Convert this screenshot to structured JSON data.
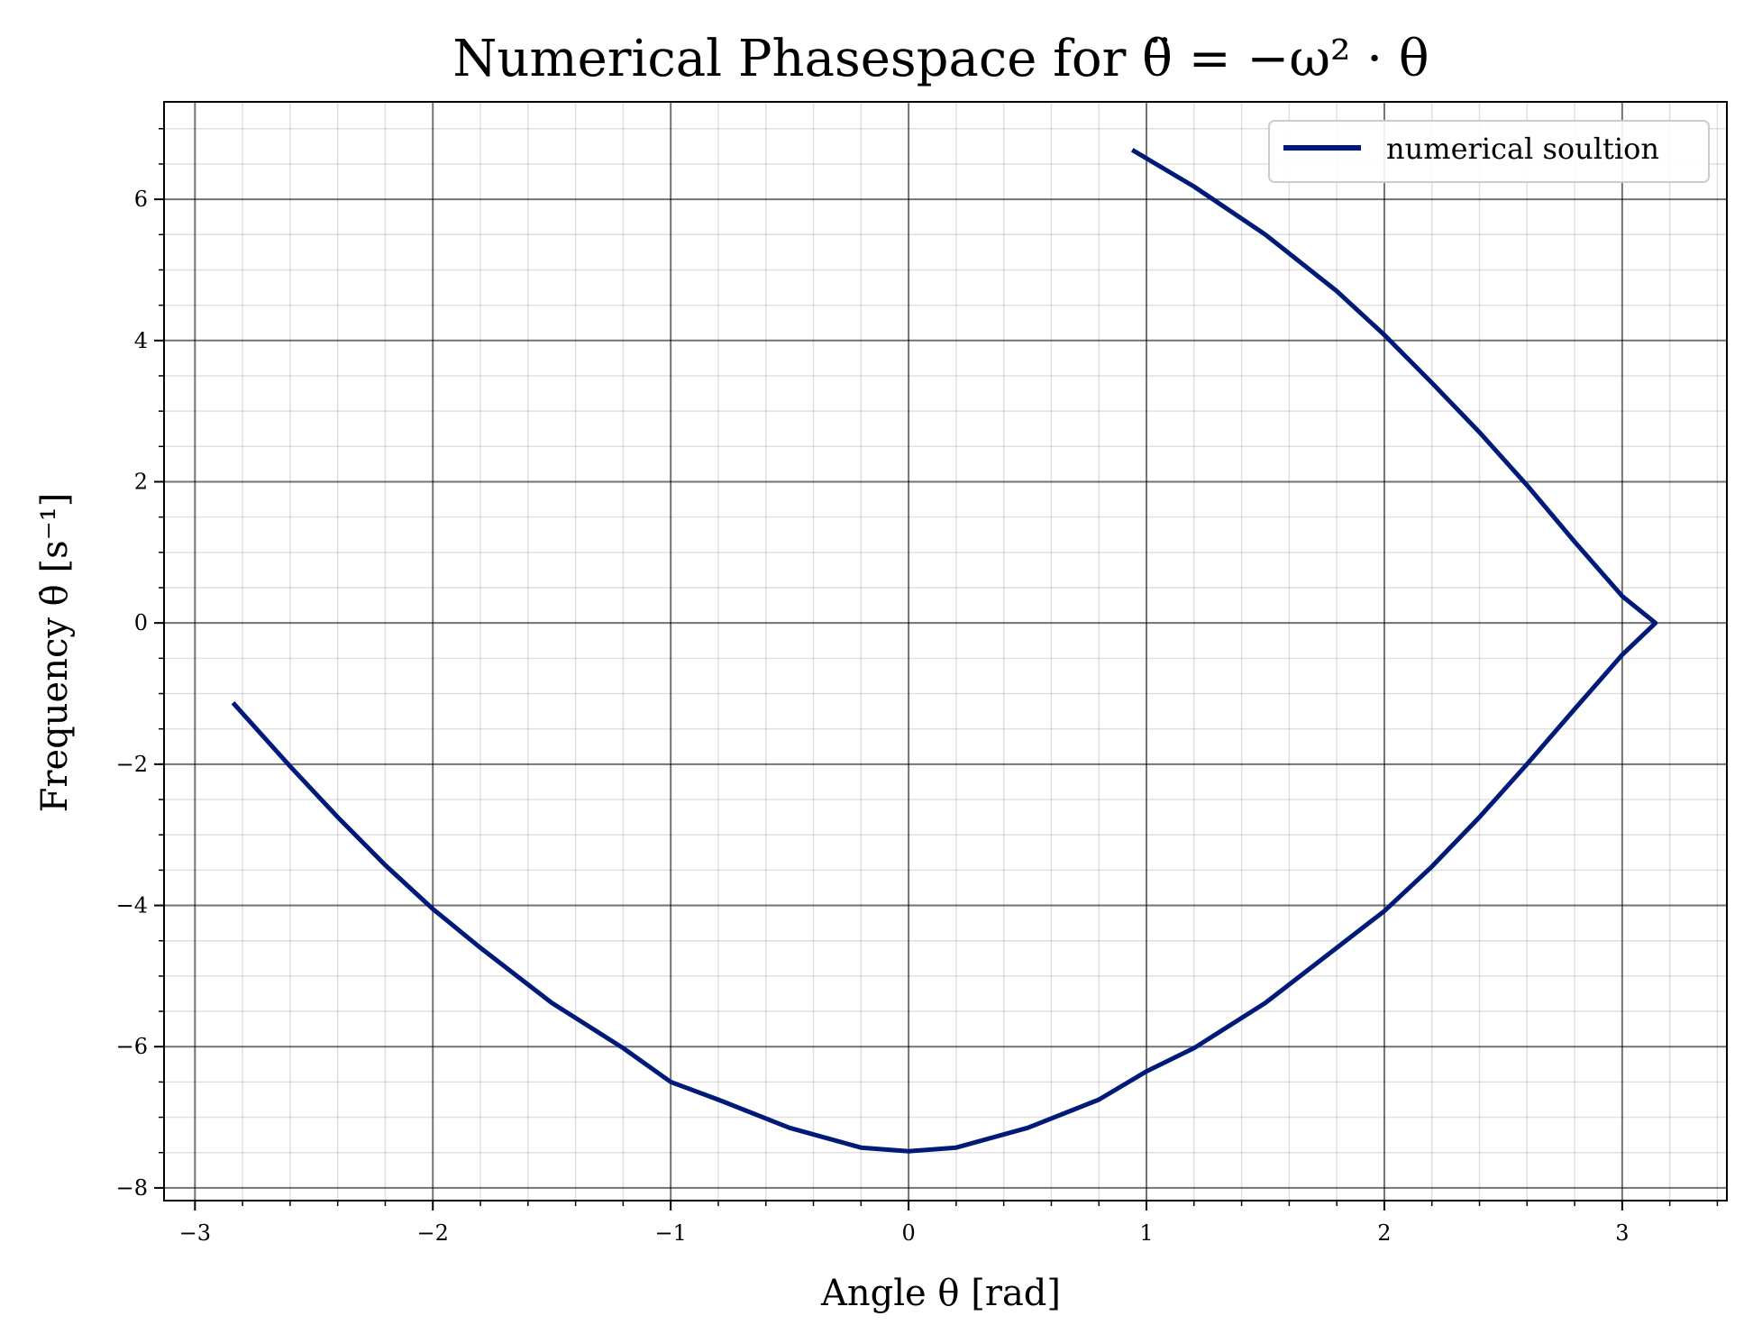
{
  "chart_data": {
    "type": "line",
    "title": "Numerical Phasespace for θ̈ = −ω² · θ",
    "xlabel": "Angle θ [rad]",
    "ylabel": "Frequency θ̇ [s⁻¹]",
    "xlim": [
      -3.13,
      3.44
    ],
    "ylim": [
      -8.18,
      7.38
    ],
    "x_ticks": [
      -3,
      -2,
      -1,
      0,
      1,
      2,
      3
    ],
    "x_tick_labels": [
      "−3",
      "−2",
      "−1",
      "0",
      "1",
      "2",
      "3"
    ],
    "y_ticks": [
      -8,
      -6,
      -4,
      -2,
      0,
      2,
      4,
      6
    ],
    "y_tick_labels": [
      "−8",
      "−6",
      "−4",
      "−2",
      "0",
      "2",
      "4",
      "6"
    ],
    "grid": true,
    "minor_grid": true,
    "legend_position": "top-right",
    "series": [
      {
        "name": "numerical soultion",
        "color": "#001a7a",
        "x": [
          0.94,
          1.2,
          1.5,
          1.8,
          2.0,
          2.2,
          2.4,
          2.6,
          2.8,
          3.0,
          3.14,
          3.0,
          2.8,
          2.6,
          2.4,
          2.2,
          2.0,
          1.8,
          1.5,
          1.2,
          1.0,
          0.8,
          0.5,
          0.2,
          0.0,
          -0.2,
          -0.5,
          -0.8,
          -1.0,
          -1.2,
          -1.5,
          -1.8,
          -2.0,
          -2.2,
          -2.4,
          -2.6,
          -2.84
        ],
        "y": [
          6.7,
          6.18,
          5.5,
          4.7,
          4.08,
          3.4,
          2.7,
          1.95,
          1.15,
          0.38,
          0.0,
          -0.45,
          -1.22,
          -2.0,
          -2.75,
          -3.45,
          -4.08,
          -4.6,
          -5.38,
          -6.02,
          -6.35,
          -6.75,
          -7.15,
          -7.43,
          -7.48,
          -7.43,
          -7.15,
          -6.75,
          -6.5,
          -6.02,
          -5.38,
          -4.6,
          -4.05,
          -3.43,
          -2.75,
          -2.03,
          -1.13
        ]
      }
    ]
  }
}
